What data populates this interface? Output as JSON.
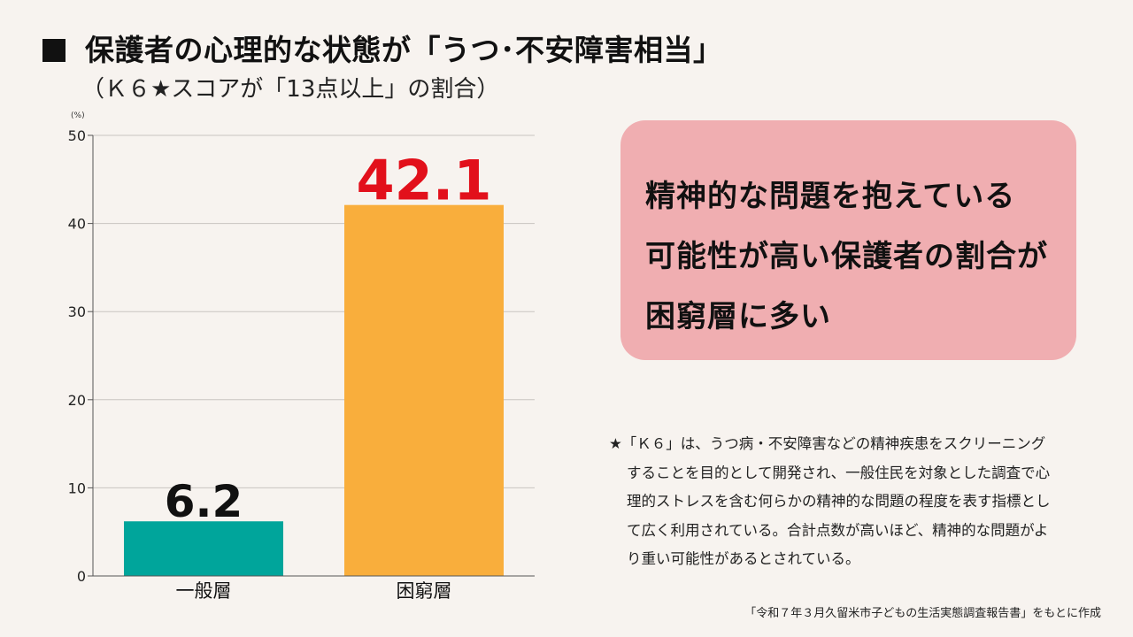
{
  "header": {
    "title": "保護者の心理的な状態が「うつ･不安障害相当」",
    "subtitle": "（Ｋ６★スコアが「13点以上」の割合）"
  },
  "chart_data": {
    "type": "bar",
    "unit_label": "(%)",
    "categories": [
      "一般層",
      "困窮層"
    ],
    "values": [
      6.2,
      42.1
    ],
    "value_labels": [
      "6.2",
      "42.1"
    ],
    "ylim": [
      0,
      50
    ],
    "yticks": [
      0,
      10,
      20,
      30,
      40,
      50
    ],
    "grid": true,
    "colors": {
      "bars": [
        "#00a59b",
        "#f9ae3c"
      ],
      "value_labels": [
        "#111111",
        "#e2101b"
      ],
      "grid": "#c8c4c0",
      "axis": "#555555"
    }
  },
  "callout": {
    "lines": [
      "精神的な問題を抱えている",
      "可能性が高い保護者の割合が",
      "困窮層に多い"
    ],
    "background": "#f0aeb1"
  },
  "footnote": {
    "lines": [
      "★「Ｋ６」は、うつ病・不安障害などの精神疾患をスクリーニング",
      "することを目的として開発され、一般住民を対象とした調査で心",
      "理的ストレスを含む何らかの精神的な問題の程度を表す指標とし",
      "て広く利用されている。合計点数が高いほど、精神的な問題がよ",
      "り重い可能性があるとされている。"
    ]
  },
  "source": "「令和７年３月久留米市子どもの生活実態調査報告書」をもとに作成"
}
